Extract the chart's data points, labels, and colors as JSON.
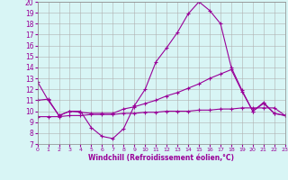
{
  "x": [
    0,
    1,
    2,
    3,
    4,
    5,
    6,
    7,
    8,
    9,
    10,
    11,
    12,
    13,
    14,
    15,
    16,
    17,
    18,
    19,
    20,
    21,
    22,
    23
  ],
  "line1_data": [
    12.7,
    11.0,
    9.6,
    10.0,
    10.0,
    8.5,
    7.7,
    7.5,
    8.4,
    10.5,
    12.0,
    14.5,
    15.8,
    17.2,
    18.9,
    20.0,
    19.2,
    18.0,
    14.0,
    11.9,
    10.0,
    10.8,
    9.8,
    9.6
  ],
  "line2_data": [
    11.0,
    11.1,
    9.6,
    10.0,
    9.9,
    9.8,
    9.8,
    9.8,
    10.2,
    10.4,
    10.7,
    11.0,
    11.4,
    11.7,
    12.1,
    12.5,
    13.0,
    13.4,
    13.8,
    11.8,
    10.0,
    10.7,
    9.8,
    9.6
  ],
  "line3_data": [
    9.5,
    9.5,
    9.5,
    9.6,
    9.6,
    9.7,
    9.7,
    9.7,
    9.8,
    9.8,
    9.9,
    9.9,
    10.0,
    10.0,
    10.0,
    10.1,
    10.1,
    10.2,
    10.2,
    10.3,
    10.3,
    10.3,
    10.3,
    9.6
  ],
  "line_color": "#990099",
  "bg_color": "#d8f5f5",
  "grid_color": "#b0b0b0",
  "xlabel": "Windchill (Refroidissement éolien,°C)",
  "ylim": [
    7,
    20
  ],
  "xlim": [
    0,
    23
  ],
  "yticks": [
    7,
    8,
    9,
    10,
    11,
    12,
    13,
    14,
    15,
    16,
    17,
    18,
    19,
    20
  ],
  "xticks": [
    0,
    1,
    2,
    3,
    4,
    5,
    6,
    7,
    8,
    9,
    10,
    11,
    12,
    13,
    14,
    15,
    16,
    17,
    18,
    19,
    20,
    21,
    22,
    23
  ]
}
